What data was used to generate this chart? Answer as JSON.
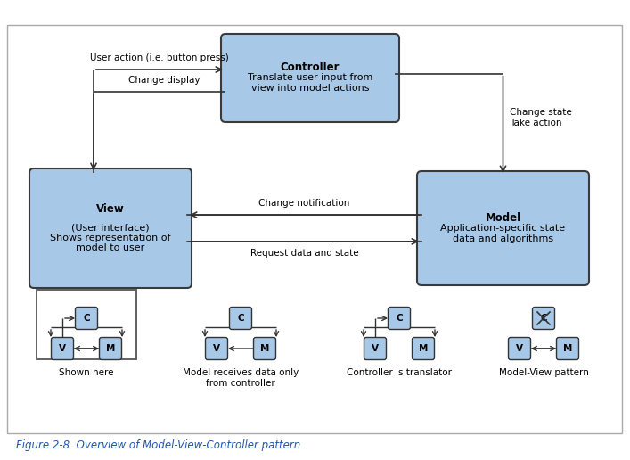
{
  "bg_color": "#ffffff",
  "box_fill": "#a8c8e8",
  "box_edge": "#3a3a3a",
  "figsize": [
    7.07,
    5.16
  ],
  "title": "Figure 2-8. Overview of Model-View-Controller pattern",
  "arrow_color": "#333333",
  "text_color": "#000000",
  "caption_color": "#2255aa",
  "ctrl_lines": [
    "Controller",
    "Translate user input from",
    "view into model actions"
  ],
  "view_lines": [
    "View",
    "",
    "(User interface)",
    "Shows representation of",
    "model to user"
  ],
  "model_lines": [
    "Model",
    "Application-specific state",
    "data and algorithms"
  ],
  "mini1_label": "Shown here",
  "mini2_label": "Model receives data only\nfrom controller",
  "mini3_label": "Controller is translator",
  "mini4_label": "Model-View pattern"
}
